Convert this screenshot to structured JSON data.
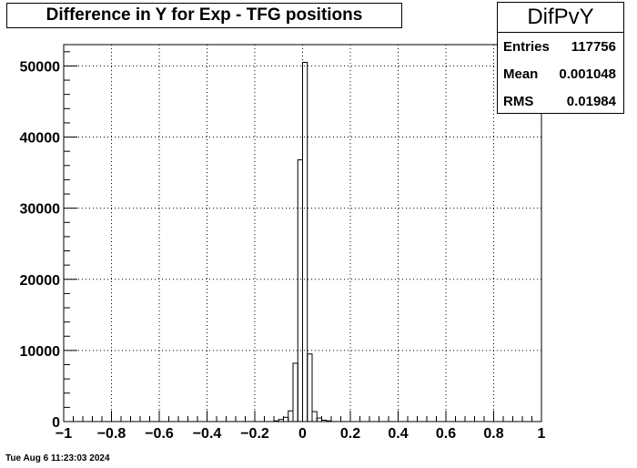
{
  "chart_data": {
    "type": "bar",
    "title": "Difference in Y for Exp - TFG positions",
    "xlabel": "",
    "ylabel": "",
    "xlim": [
      -1,
      1
    ],
    "ylim": [
      0,
      53000
    ],
    "x_ticks": [
      "−1",
      "−0.8",
      "−0.6",
      "−0.4",
      "−0.2",
      "0",
      "0.2",
      "0.4",
      "0.6",
      "0.8",
      "1"
    ],
    "y_ticks": [
      "0",
      "10000",
      "20000",
      "30000",
      "40000",
      "50000"
    ],
    "grid": true,
    "bin_width": 0.02,
    "bins": [
      {
        "x0": -0.12,
        "value": 100
      },
      {
        "x0": -0.1,
        "value": 300
      },
      {
        "x0": -0.08,
        "value": 600
      },
      {
        "x0": -0.06,
        "value": 1500
      },
      {
        "x0": -0.04,
        "value": 8200
      },
      {
        "x0": -0.02,
        "value": 36800
      },
      {
        "x0": 0.0,
        "value": 50500
      },
      {
        "x0": 0.02,
        "value": 9500
      },
      {
        "x0": 0.04,
        "value": 1400
      },
      {
        "x0": 0.06,
        "value": 500
      },
      {
        "x0": 0.08,
        "value": 200
      },
      {
        "x0": 0.1,
        "value": 100
      }
    ]
  },
  "stats": {
    "name": "DifPvY",
    "rows": [
      {
        "label": "Entries",
        "value": "117756"
      },
      {
        "label": "Mean",
        "value": "0.001048"
      },
      {
        "label": "RMS",
        "value": "0.01984"
      }
    ]
  },
  "footer": {
    "date": "Tue Aug  6 11:23:03 2024"
  }
}
